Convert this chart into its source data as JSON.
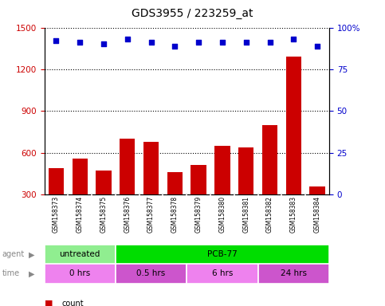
{
  "title": "GDS3955 / 223259_at",
  "samples": [
    "GSM158373",
    "GSM158374",
    "GSM158375",
    "GSM158376",
    "GSM158377",
    "GSM158378",
    "GSM158379",
    "GSM158380",
    "GSM158381",
    "GSM158382",
    "GSM158383",
    "GSM158384"
  ],
  "counts": [
    490,
    555,
    470,
    700,
    680,
    460,
    510,
    650,
    640,
    800,
    1290,
    355
  ],
  "percentiles": [
    92,
    91,
    90,
    93,
    91,
    89,
    91,
    91,
    91,
    91,
    93,
    89
  ],
  "ylim_left": [
    300,
    1500
  ],
  "ylim_right": [
    0,
    100
  ],
  "yticks_left": [
    300,
    600,
    900,
    1200,
    1500
  ],
  "yticks_right": [
    0,
    25,
    50,
    75,
    100
  ],
  "agent_labels": [
    {
      "label": "untreated",
      "start": 0,
      "end": 3,
      "color": "#90ee90"
    },
    {
      "label": "PCB-77",
      "start": 3,
      "end": 12,
      "color": "#00dd00"
    }
  ],
  "time_labels": [
    {
      "label": "0 hrs",
      "start": 0,
      "end": 3,
      "color": "#ee82ee"
    },
    {
      "label": "0.5 hrs",
      "start": 3,
      "end": 6,
      "color": "#cc55cc"
    },
    {
      "label": "6 hrs",
      "start": 6,
      "end": 9,
      "color": "#ee82ee"
    },
    {
      "label": "24 hrs",
      "start": 9,
      "end": 12,
      "color": "#cc55cc"
    }
  ],
  "bar_color": "#cc0000",
  "dot_color": "#0000cc",
  "grid_color": "#000000",
  "background_color": "#ffffff",
  "label_bg_color": "#d3d3d3",
  "ylabel_left_color": "#cc0000",
  "ylabel_right_color": "#0000cc",
  "legend_count_color": "#cc0000",
  "legend_pct_color": "#0000cc",
  "fig_width": 4.83,
  "fig_height": 3.84,
  "dpi": 100
}
